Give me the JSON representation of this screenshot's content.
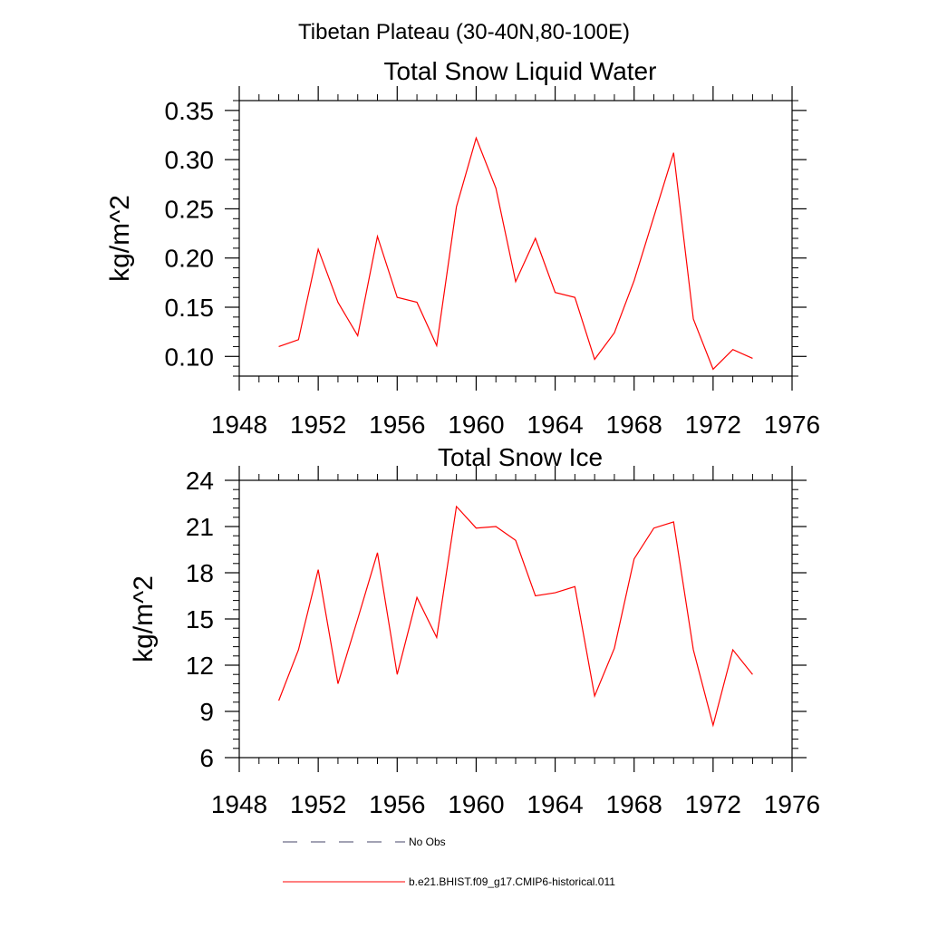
{
  "figure": {
    "suptitle": "Tibetan Plateau (30-40N,80-100E)"
  },
  "colors": {
    "model": "#ff0000",
    "obs": "#44446a",
    "axis": "#000000"
  },
  "legend": {
    "placement": "bottom",
    "entries": [
      {
        "label": "No Obs",
        "style": "dashed"
      },
      {
        "label": "b.e21.BHIST.f09_g17.CMIP6-historical.011",
        "style": "solid"
      }
    ]
  },
  "chart_data": [
    {
      "type": "line",
      "title": "Total Snow Liquid Water",
      "ylabel": "kg/m^2",
      "xlabel": "",
      "xlim": [
        1948,
        1976
      ],
      "ylim": [
        0.08,
        0.36
      ],
      "xticks": [
        1948,
        1952,
        1956,
        1960,
        1964,
        1968,
        1972,
        1976
      ],
      "xtick_labels": [
        "1948",
        "1952",
        "1956",
        "1960",
        "1964",
        "1968",
        "1972",
        "1976"
      ],
      "yticks": [
        0.1,
        0.15,
        0.2,
        0.25,
        0.3,
        0.35
      ],
      "ytick_labels": [
        "0.10",
        "0.15",
        "0.20",
        "0.25",
        "0.30",
        "0.35"
      ],
      "yminor_step": 0.01,
      "xminor_step": 1,
      "grid": false,
      "series": [
        {
          "name": "b.e21.BHIST.f09_g17.CMIP6-historical.011",
          "x": [
            1950,
            1951,
            1952,
            1953,
            1954,
            1955,
            1956,
            1957,
            1958,
            1959,
            1960,
            1961,
            1962,
            1963,
            1964,
            1965,
            1966,
            1967,
            1968,
            1969,
            1970,
            1971,
            1972,
            1973,
            1974
          ],
          "y": [
            0.11,
            0.117,
            0.209,
            0.155,
            0.121,
            0.222,
            0.16,
            0.155,
            0.111,
            0.252,
            0.322,
            0.271,
            0.176,
            0.22,
            0.165,
            0.16,
            0.097,
            0.124,
            0.177,
            0.242,
            0.307,
            0.138,
            0.087,
            0.107,
            0.098
          ]
        }
      ]
    },
    {
      "type": "line",
      "title": "Total Snow Ice",
      "ylabel": "kg/m^2",
      "xlabel": "",
      "xlim": [
        1948,
        1976
      ],
      "ylim": [
        6,
        24
      ],
      "xticks": [
        1948,
        1952,
        1956,
        1960,
        1964,
        1968,
        1972,
        1976
      ],
      "xtick_labels": [
        "1948",
        "1952",
        "1956",
        "1960",
        "1964",
        "1968",
        "1972",
        "1976"
      ],
      "yticks": [
        6,
        9,
        12,
        15,
        18,
        21,
        24
      ],
      "ytick_labels": [
        "6",
        "9",
        "12",
        "15",
        "18",
        "21",
        "24"
      ],
      "yminor_step": 0.6,
      "xminor_step": 1,
      "grid": false,
      "series": [
        {
          "name": "b.e21.BHIST.f09_g17.CMIP6-historical.011",
          "x": [
            1950,
            1951,
            1952,
            1953,
            1954,
            1955,
            1956,
            1957,
            1958,
            1959,
            1960,
            1961,
            1962,
            1963,
            1964,
            1965,
            1966,
            1967,
            1968,
            1969,
            1970,
            1971,
            1972,
            1973,
            1974
          ],
          "y": [
            9.7,
            13.0,
            18.2,
            10.8,
            15.0,
            19.3,
            11.4,
            16.4,
            13.8,
            22.3,
            20.9,
            21.0,
            20.1,
            16.5,
            16.7,
            17.1,
            10.0,
            13.1,
            18.9,
            20.9,
            21.3,
            13.0,
            8.1,
            13.0,
            11.4
          ]
        }
      ]
    }
  ]
}
